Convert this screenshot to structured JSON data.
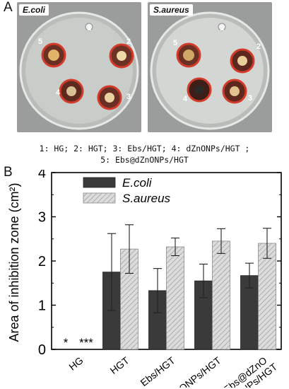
{
  "panels": {
    "a_letter": "A",
    "b_letter": "B"
  },
  "photos": [
    {
      "label": "E.coli",
      "wells": [
        "1",
        "2",
        "3",
        "4",
        "5"
      ]
    },
    {
      "label": "S.aureus",
      "wells": [
        "1",
        "2",
        "3",
        "4",
        "5"
      ]
    }
  ],
  "legend_caption": {
    "line1": "1: HG; 2: HGT; 3: Ebs/HGT; 4:  dZnONPs/HGT ;",
    "line2": "5: Ebs@dZnONPs/HGT"
  },
  "chart_data": {
    "type": "bar",
    "title": "",
    "xlabel": "",
    "ylabel": "Area of inhibition zone (cm²)",
    "ylim": [
      0,
      4
    ],
    "yticks": [
      0,
      1,
      2,
      3,
      4
    ],
    "categories": [
      "HG",
      "HGT",
      "Ebs/HGT",
      "dZnONPs/HGT",
      "Ebs@dZnONPs/HGT"
    ],
    "category_labels": [
      [
        "HG"
      ],
      [
        "HGT"
      ],
      [
        "Ebs/HGT"
      ],
      [
        "dZnONPs/HGT"
      ],
      [
        "Ebs@dZnO",
        "NPs/HGT"
      ]
    ],
    "series": [
      {
        "name": "E.coli",
        "values": [
          0,
          1.75,
          1.33,
          1.55,
          1.67
        ],
        "errors": [
          0,
          0.87,
          0.5,
          0.38,
          0.28
        ],
        "color": "#3a3a3a"
      },
      {
        "name": "S.aureus",
        "values": [
          0,
          2.27,
          2.32,
          2.45,
          2.4
        ],
        "errors": [
          0,
          0.55,
          0.2,
          0.28,
          0.34
        ],
        "color": "#d6d6d6"
      }
    ],
    "annotations": [
      {
        "category": "HG",
        "series": "E.coli",
        "text": "*"
      },
      {
        "category": "HG",
        "series": "S.aureus",
        "text": "***"
      }
    ],
    "legend_position": "top-left",
    "grid": false
  }
}
